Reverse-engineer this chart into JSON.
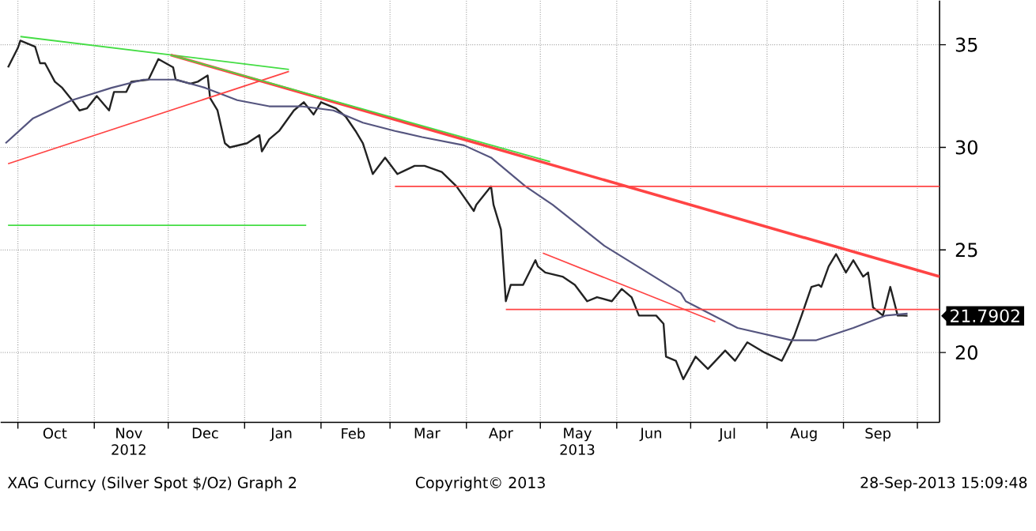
{
  "chart_data": {
    "type": "line",
    "xlim": [
      "2012-09-24",
      "2013-10-10"
    ],
    "ylim": [
      16.6,
      37.15
    ],
    "yticks": [
      20,
      25,
      30,
      35
    ],
    "grid": true,
    "marker": "none",
    "line_style": "solid",
    "xticks": [
      {
        "value": "2012-10-01",
        "label": null
      },
      {
        "value": "2012-10-16",
        "label": "Oct"
      },
      {
        "value": "2012-11-01",
        "label": null
      },
      {
        "value": "2012-11-15",
        "label": "Nov 2012"
      },
      {
        "value": "2012-12-01",
        "label": null
      },
      {
        "value": "2012-12-16",
        "label": "Dec"
      },
      {
        "value": "2013-01-01",
        "label": null
      },
      {
        "value": "2013-01-16",
        "label": "Jan"
      },
      {
        "value": "2013-02-01",
        "label": null
      },
      {
        "value": "2013-02-14",
        "label": "Feb"
      },
      {
        "value": "2013-03-01",
        "label": null
      },
      {
        "value": "2013-03-16",
        "label": "Mar"
      },
      {
        "value": "2013-04-01",
        "label": null
      },
      {
        "value": "2013-04-15",
        "label": "Apr"
      },
      {
        "value": "2013-05-01",
        "label": null
      },
      {
        "value": "2013-05-16",
        "label": "May 2013"
      },
      {
        "value": "2013-06-01",
        "label": null
      },
      {
        "value": "2013-06-15",
        "label": "Jun"
      },
      {
        "value": "2013-07-01",
        "label": null
      },
      {
        "value": "2013-07-16",
        "label": "Jul"
      },
      {
        "value": "2013-08-01",
        "label": null
      },
      {
        "value": "2013-08-16",
        "label": "Aug"
      },
      {
        "value": "2013-09-01",
        "label": null
      },
      {
        "value": "2013-09-15",
        "label": "Sep"
      },
      {
        "value": "2013-10-01",
        "label": null
      }
    ],
    "series": [
      {
        "color": "#222222",
        "x": [
          "2012-09-27",
          "2012-10-01",
          "2012-10-02",
          "2012-10-08",
          "2012-10-10",
          "2012-10-12",
          "2012-10-16",
          "2012-10-19",
          "2012-10-23",
          "2012-10-26",
          "2012-10-29",
          "2012-11-02",
          "2012-11-07",
          "2012-11-09",
          "2012-11-14",
          "2012-11-16",
          "2012-11-23",
          "2012-11-27",
          "2012-12-03",
          "2012-12-04",
          "2012-12-10",
          "2012-12-13",
          "2012-12-17",
          "2012-12-18",
          "2012-12-21",
          "2012-12-24",
          "2012-12-26",
          "2013-01-02",
          "2013-01-07",
          "2013-01-08",
          "2013-01-11",
          "2013-01-15",
          "2013-01-21",
          "2013-01-25",
          "2013-01-29",
          "2013-02-01",
          "2013-02-07",
          "2013-02-11",
          "2013-02-15",
          "2013-02-18",
          "2013-02-22",
          "2013-02-27",
          "2013-03-04",
          "2013-03-11",
          "2013-03-15",
          "2013-03-22",
          "2013-03-28",
          "2013-04-04",
          "2013-04-05",
          "2013-04-11",
          "2013-04-12",
          "2013-04-15",
          "2013-04-17",
          "2013-04-19",
          "2013-04-24",
          "2013-04-29",
          "2013-04-30",
          "2013-05-03",
          "2013-05-10",
          "2013-05-15",
          "2013-05-20",
          "2013-05-24",
          "2013-05-30",
          "2013-06-03",
          "2013-06-07",
          "2013-06-10",
          "2013-06-17",
          "2013-06-20",
          "2013-06-21",
          "2013-06-25",
          "2013-06-28",
          "2013-07-03",
          "2013-07-08",
          "2013-07-15",
          "2013-07-19",
          "2013-07-24",
          "2013-07-31",
          "2013-08-07",
          "2013-08-12",
          "2013-08-15",
          "2013-08-19",
          "2013-08-22",
          "2013-08-23",
          "2013-08-26",
          "2013-08-29",
          "2013-09-02",
          "2013-09-05",
          "2013-09-09",
          "2013-09-11",
          "2013-09-13",
          "2013-09-17",
          "2013-09-20",
          "2013-09-23",
          "2013-09-25",
          "2013-09-27"
        ],
        "values": [
          33.9,
          34.85,
          35.2,
          34.9,
          34.1,
          34.1,
          33.2,
          32.9,
          32.3,
          31.8,
          31.9,
          32.5,
          31.8,
          32.7,
          32.7,
          33.2,
          33.3,
          34.3,
          33.9,
          33.3,
          33.1,
          33.2,
          33.5,
          32.4,
          31.8,
          30.2,
          30.0,
          30.2,
          30.6,
          29.8,
          30.4,
          30.8,
          31.8,
          32.2,
          31.6,
          32.2,
          31.9,
          31.5,
          30.8,
          30.2,
          28.7,
          29.5,
          28.7,
          29.1,
          29.1,
          28.8,
          28.1,
          26.9,
          27.2,
          28.1,
          27.2,
          26.0,
          22.5,
          23.3,
          23.3,
          24.5,
          24.2,
          23.9,
          23.7,
          23.3,
          22.5,
          22.7,
          22.5,
          23.1,
          22.7,
          21.8,
          21.8,
          21.4,
          19.8,
          19.6,
          18.7,
          19.8,
          19.2,
          20.1,
          19.6,
          20.5,
          20.0,
          19.6,
          20.8,
          21.8,
          23.2,
          23.3,
          23.2,
          24.2,
          24.8,
          23.9,
          24.5,
          23.7,
          23.9,
          22.2,
          21.8,
          23.2,
          21.8,
          21.8,
          21.79
        ]
      },
      {
        "color": "#55557f",
        "x": [
          "2012-09-26",
          "2012-10-07",
          "2012-10-23",
          "2012-11-08",
          "2012-11-21",
          "2012-12-04",
          "2012-12-16",
          "2012-12-29",
          "2013-01-11",
          "2013-01-24",
          "2013-02-06",
          "2013-02-18",
          "2013-03-03",
          "2013-03-14",
          "2013-03-31",
          "2013-04-11",
          "2013-04-25",
          "2013-05-06",
          "2013-05-27",
          "2013-06-27",
          "2013-06-29",
          "2013-07-20",
          "2013-08-11",
          "2013-08-21",
          "2013-09-05",
          "2013-09-18",
          "2013-09-27"
        ],
        "values": [
          30.2,
          31.4,
          32.3,
          32.9,
          33.3,
          33.3,
          32.9,
          32.3,
          32.0,
          32.0,
          31.8,
          31.2,
          30.8,
          30.5,
          30.1,
          29.5,
          28.1,
          27.2,
          25.2,
          22.9,
          22.5,
          21.2,
          20.6,
          20.6,
          21.2,
          21.8,
          21.9
        ]
      },
      {
        "color": "#44dd44",
        "x": [
          "2012-10-02",
          "2013-01-19"
        ],
        "values": [
          35.4,
          33.8
        ]
      },
      {
        "color": "#ff4444",
        "x": [
          "2012-09-27",
          "2013-01-19"
        ],
        "values": [
          29.2,
          33.7
        ]
      },
      {
        "color": "#44dd44",
        "x": [
          "2012-09-27",
          "2013-01-26"
        ],
        "values": [
          26.2,
          26.2
        ]
      },
      {
        "color": "#ff4444",
        "x": [
          "2012-12-02",
          "2013-10-10"
        ],
        "values": [
          34.5,
          23.7
        ]
      },
      {
        "color": "#44dd44",
        "x": [
          "2012-12-02",
          "2013-05-05"
        ],
        "values": [
          34.5,
          29.3
        ]
      },
      {
        "color": "#ff4444",
        "x": [
          "2013-03-03",
          "2013-10-10"
        ],
        "values": [
          28.1,
          28.1
        ]
      },
      {
        "color": "#ff4444",
        "x": [
          "2013-04-17",
          "2013-10-10"
        ],
        "values": [
          22.1,
          22.1
        ]
      },
      {
        "color": "#ff4444",
        "x": [
          "2013-05-02",
          "2013-07-11"
        ],
        "values": [
          24.85,
          21.5
        ]
      }
    ],
    "annotations": [
      {
        "text": "21.7902",
        "x": "2013-09-27",
        "y": 21.7902
      },
      "XAG Curncy (Silver Spot  $/Oz) Graph 2",
      "Copyright© 2013",
      "28-Sep-2013 15:09:48"
    ]
  }
}
